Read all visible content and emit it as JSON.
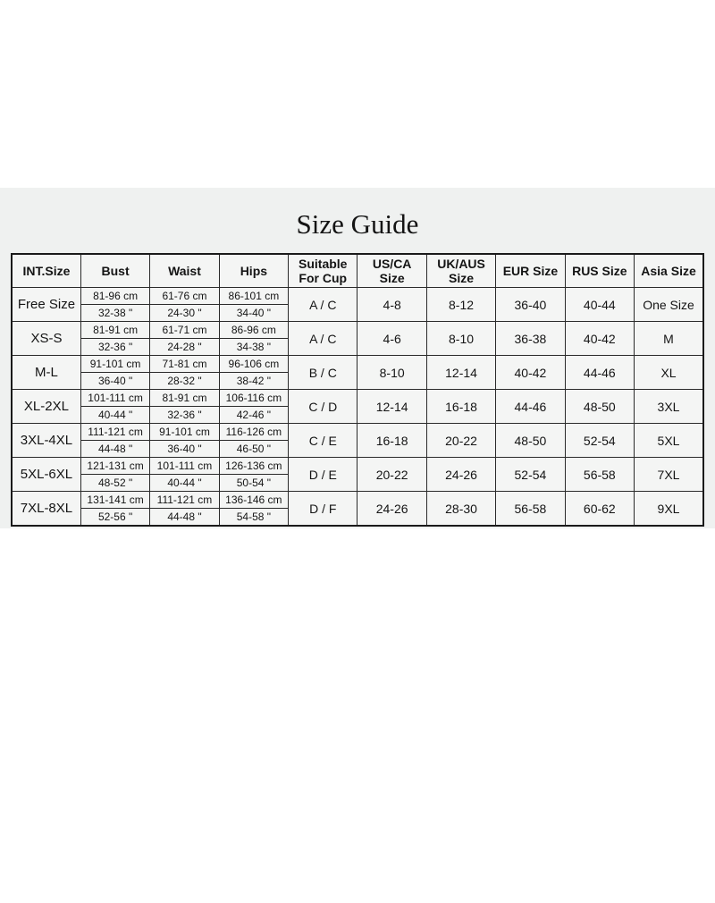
{
  "title": "Size Guide",
  "colors": {
    "page_background": "#ffffff",
    "panel_background": "#eff1f0",
    "table_background": "#f4f5f4",
    "border": "#1a1a1a",
    "text": "#141414"
  },
  "table": {
    "columns": [
      {
        "key": "int-size",
        "label": "INT.Size"
      },
      {
        "key": "bust",
        "label": "Bust"
      },
      {
        "key": "waist",
        "label": "Waist"
      },
      {
        "key": "hips",
        "label": "Hips"
      },
      {
        "key": "cup",
        "label": "Suitable For Cup"
      },
      {
        "key": "us-ca",
        "label": "US/CA Size"
      },
      {
        "key": "uk-aus",
        "label": "UK/AUS Size"
      },
      {
        "key": "eur",
        "label": "EUR Size"
      },
      {
        "key": "rus",
        "label": "RUS Size"
      },
      {
        "key": "asia",
        "label": "Asia Size"
      }
    ],
    "rows": [
      {
        "int_size": "Free Size",
        "bust_cm": "81-96 cm",
        "bust_in": "32-38 \"",
        "waist_cm": "61-76 cm",
        "waist_in": "24-30 \"",
        "hips_cm": "86-101 cm",
        "hips_in": "34-40 \"",
        "cup": "A / C",
        "us_ca": "4-8",
        "uk_aus": "8-12",
        "eur": "36-40",
        "rus": "40-44",
        "asia": "One Size"
      },
      {
        "int_size": "XS-S",
        "bust_cm": "81-91 cm",
        "bust_in": "32-36 \"",
        "waist_cm": "61-71 cm",
        "waist_in": "24-28 \"",
        "hips_cm": "86-96 cm",
        "hips_in": "34-38 \"",
        "cup": "A / C",
        "us_ca": "4-6",
        "uk_aus": "8-10",
        "eur": "36-38",
        "rus": "40-42",
        "asia": "M"
      },
      {
        "int_size": "M-L",
        "bust_cm": "91-101 cm",
        "bust_in": "36-40 \"",
        "waist_cm": "71-81 cm",
        "waist_in": "28-32 \"",
        "hips_cm": "96-106 cm",
        "hips_in": "38-42 \"",
        "cup": "B / C",
        "us_ca": "8-10",
        "uk_aus": "12-14",
        "eur": "40-42",
        "rus": "44-46",
        "asia": "XL"
      },
      {
        "int_size": "XL-2XL",
        "bust_cm": "101-111 cm",
        "bust_in": "40-44 \"",
        "waist_cm": "81-91 cm",
        "waist_in": "32-36 \"",
        "hips_cm": "106-116 cm",
        "hips_in": "42-46 \"",
        "cup": "C / D",
        "us_ca": "12-14",
        "uk_aus": "16-18",
        "eur": "44-46",
        "rus": "48-50",
        "asia": "3XL"
      },
      {
        "int_size": "3XL-4XL",
        "bust_cm": "111-121 cm",
        "bust_in": "44-48 \"",
        "waist_cm": "91-101 cm",
        "waist_in": "36-40 \"",
        "hips_cm": "116-126 cm",
        "hips_in": "46-50 \"",
        "cup": "C / E",
        "us_ca": "16-18",
        "uk_aus": "20-22",
        "eur": "48-50",
        "rus": "52-54",
        "asia": "5XL"
      },
      {
        "int_size": "5XL-6XL",
        "bust_cm": "121-131 cm",
        "bust_in": "48-52 \"",
        "waist_cm": "101-111 cm",
        "waist_in": "40-44 \"",
        "hips_cm": "126-136 cm",
        "hips_in": "50-54 \"",
        "cup": "D / E",
        "us_ca": "20-22",
        "uk_aus": "24-26",
        "eur": "52-54",
        "rus": "56-58",
        "asia": "7XL"
      },
      {
        "int_size": "7XL-8XL",
        "bust_cm": "131-141 cm",
        "bust_in": "52-56 \"",
        "waist_cm": "111-121 cm",
        "waist_in": "44-48 \"",
        "hips_cm": "136-146 cm",
        "hips_in": "54-58 \"",
        "cup": "D / F",
        "us_ca": "24-26",
        "uk_aus": "28-30",
        "eur": "56-58",
        "rus": "60-62",
        "asia": "9XL"
      }
    ]
  }
}
